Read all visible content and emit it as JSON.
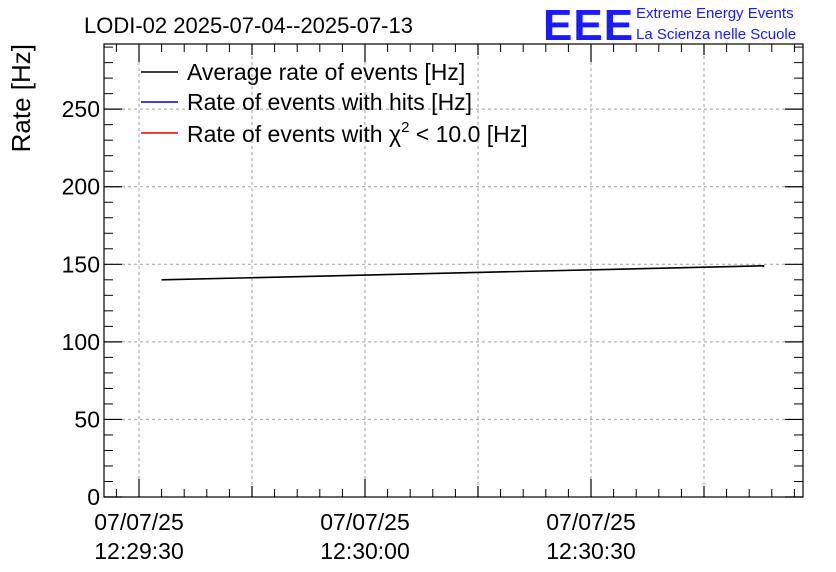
{
  "header": {
    "title": "LODI-02 2025-07-04--2025-07-13",
    "logo_mark": "EEE",
    "logo_line1": "Extreme Energy Events",
    "logo_line2": "La Scienza nelle Scuole"
  },
  "colors": {
    "logo": "#1a1aff",
    "series_average": "#000000",
    "series_hits": "#0000cc",
    "series_chi2": "#dd0000",
    "grid": "#a0a0a0"
  },
  "chart_data": {
    "type": "line",
    "title": "LODI-02 2025-07-04--2025-07-13",
    "ylabel": "Rate [Hz]",
    "xlabel": "",
    "ylim": [
      0,
      292
    ],
    "x_ticks": [
      {
        "date": "07/07/25",
        "time": "12:29:30"
      },
      {
        "date": "07/07/25",
        "time": "12:30:00"
      },
      {
        "date": "07/07/25",
        "time": "12:30:30"
      }
    ],
    "y_ticks": [
      "0",
      "50",
      "100",
      "150",
      "200",
      "250"
    ],
    "grid": true,
    "legend_position": "top-left",
    "legend": [
      {
        "label_pre": "Average rate of events [Hz]",
        "sup": "",
        "label_post": ""
      },
      {
        "label_pre": "Rate of events with hits [Hz]",
        "sup": "",
        "label_post": ""
      },
      {
        "label_pre": "Rate of events with χ",
        "sup": "2",
        "label_post": " < 10.0 [Hz]"
      }
    ],
    "series": [
      {
        "name": "Average rate of events [Hz]",
        "x": [
          "12:29:33",
          "12:30:53"
        ],
        "y": [
          140,
          149
        ]
      }
    ]
  }
}
